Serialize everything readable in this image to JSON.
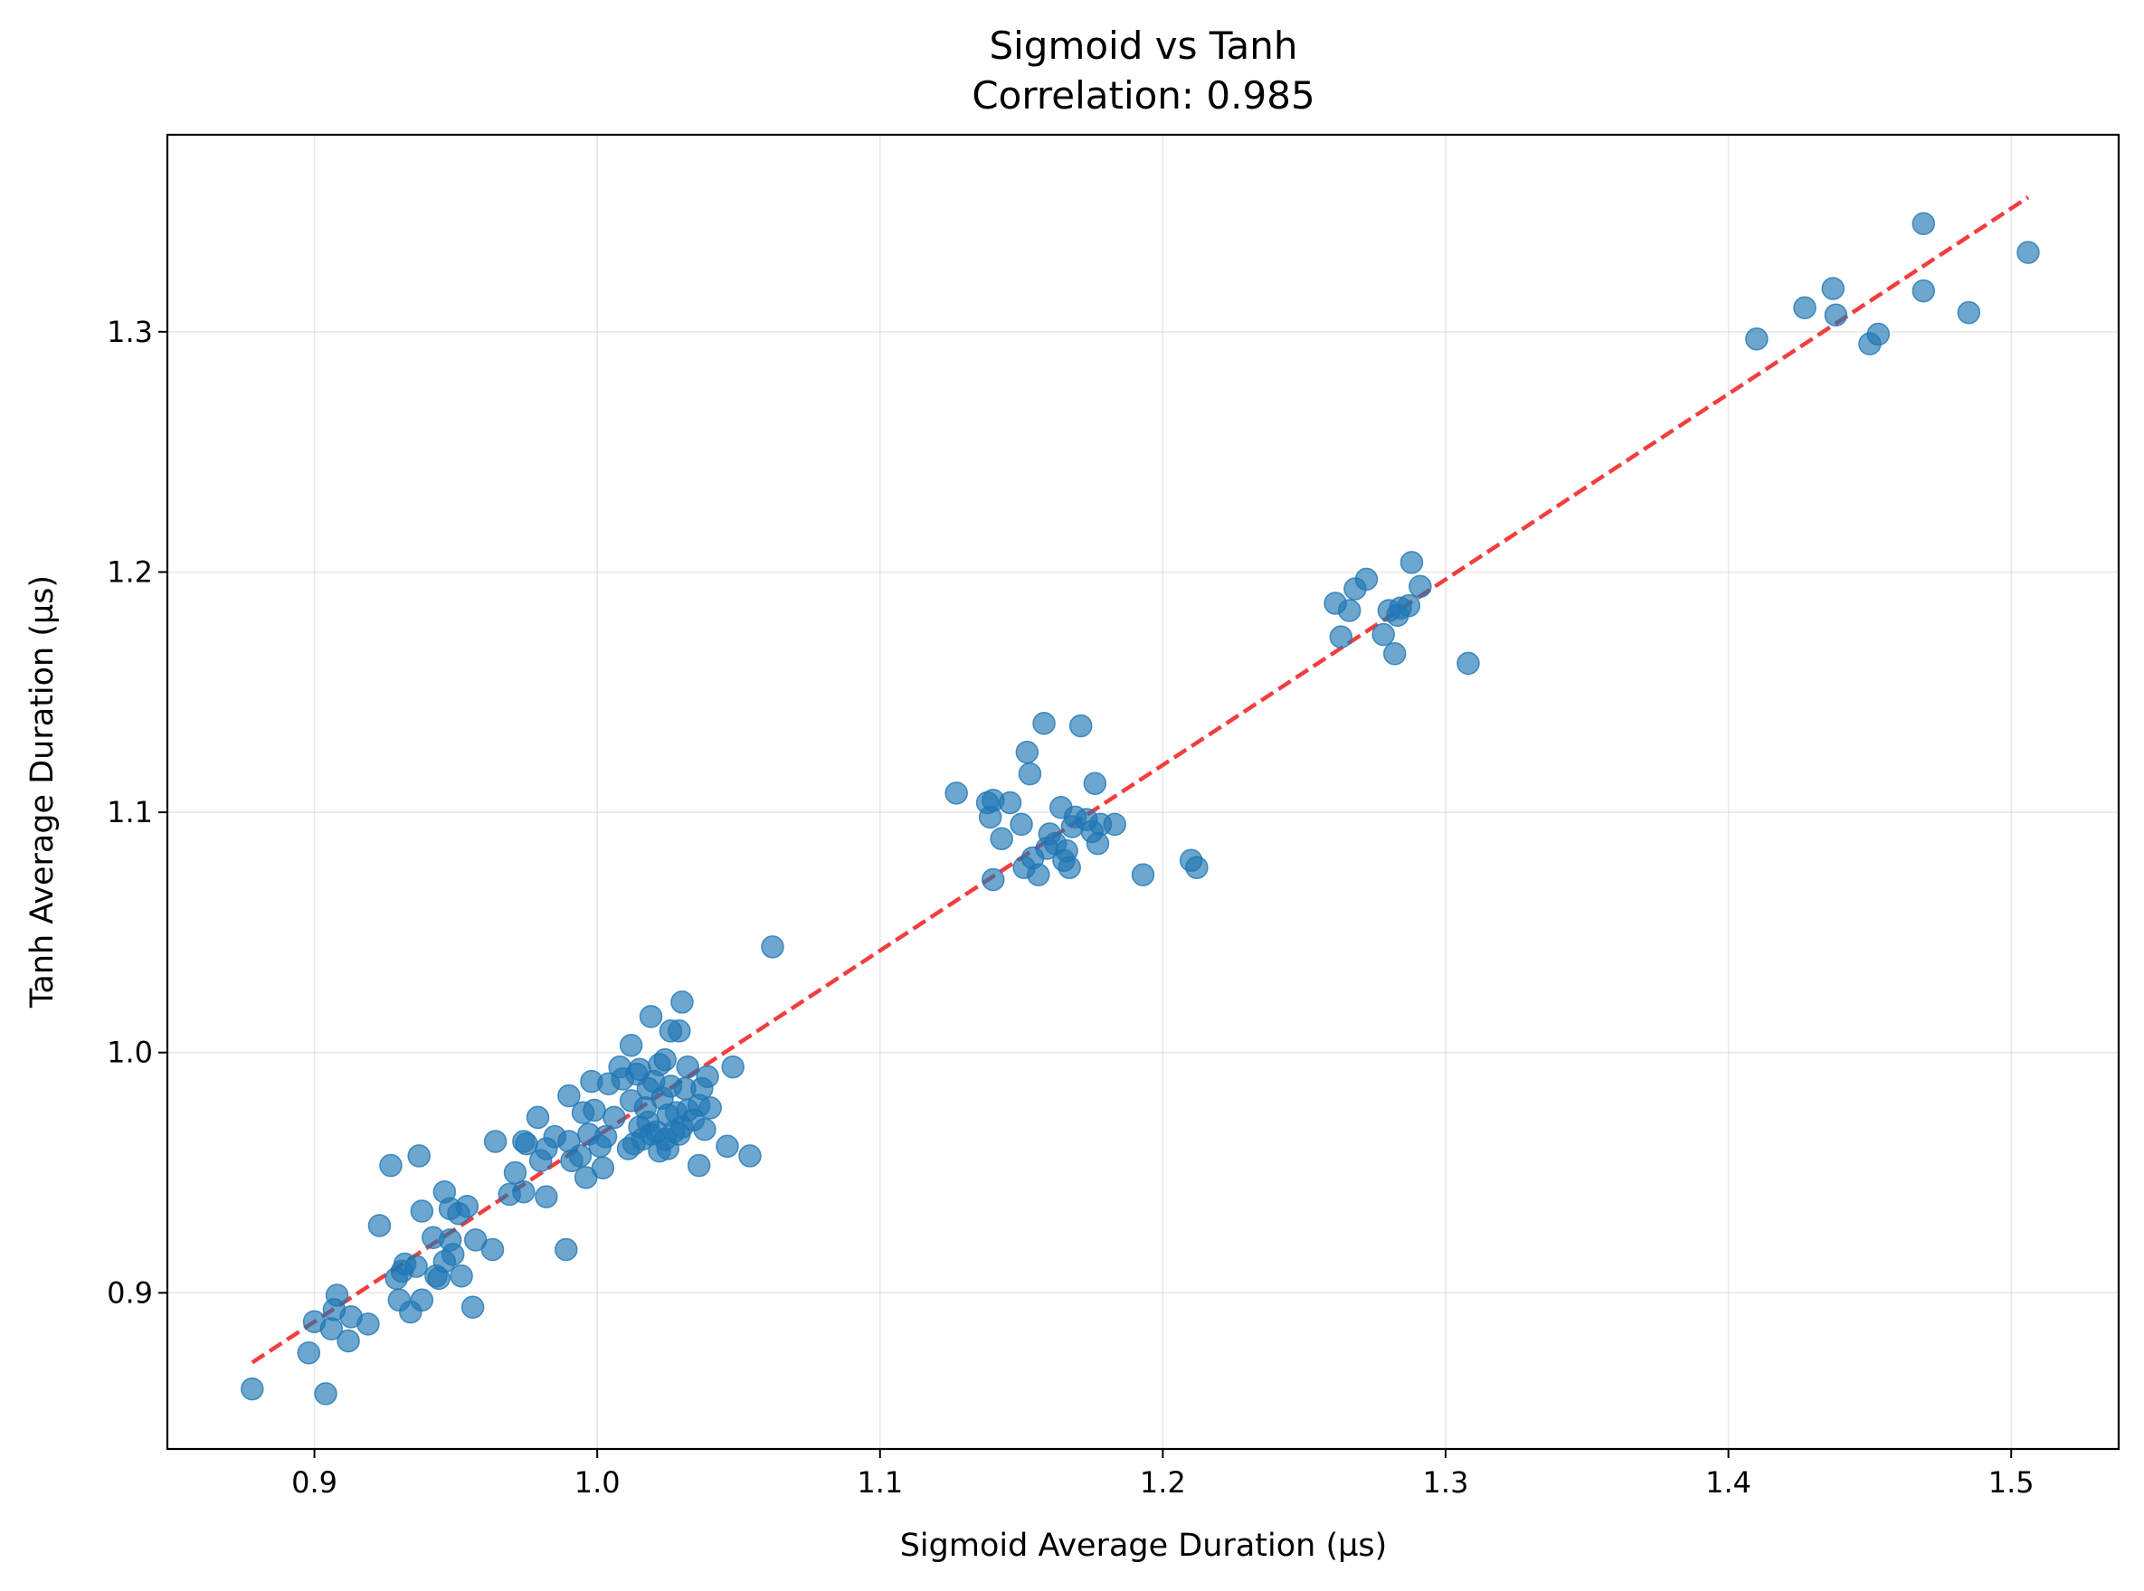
{
  "chart_data": {
    "type": "scatter",
    "title": "Sigmoid vs Tanh",
    "subtitle": "Correlation: 0.985",
    "xlabel": "Sigmoid Average Duration (µs)",
    "ylabel": "Tanh Average Duration (µs)",
    "xlim": [
      0.848,
      1.538
    ],
    "ylim": [
      0.835,
      1.382
    ],
    "xticks": [
      {
        "value": 0.9,
        "label": "0.9"
      },
      {
        "value": 1.0,
        "label": "1.0"
      },
      {
        "value": 1.1,
        "label": "1.1"
      },
      {
        "value": 1.2,
        "label": "1.2"
      },
      {
        "value": 1.3,
        "label": "1.3"
      },
      {
        "value": 1.4,
        "label": "1.4"
      },
      {
        "value": 1.5,
        "label": "1.5"
      }
    ],
    "yticks": [
      {
        "value": 0.9,
        "label": "0.9"
      },
      {
        "value": 1.0,
        "label": "1.0"
      },
      {
        "value": 1.1,
        "label": "1.1"
      },
      {
        "value": 1.2,
        "label": "1.2"
      },
      {
        "value": 1.3,
        "label": "1.3"
      }
    ],
    "grid": true,
    "colors": {
      "points": "#1f77b4",
      "trendline": "#ee1c1c"
    },
    "trendline": {
      "style": "dashed",
      "points": [
        [
          0.878,
          0.871
        ],
        [
          1.506,
          1.356
        ]
      ]
    },
    "points": [
      [
        0.878,
        0.86
      ],
      [
        0.898,
        0.875
      ],
      [
        0.9,
        0.888
      ],
      [
        0.904,
        0.858
      ],
      [
        0.906,
        0.885
      ],
      [
        0.907,
        0.893
      ],
      [
        0.908,
        0.899
      ],
      [
        0.912,
        0.88
      ],
      [
        0.913,
        0.89
      ],
      [
        0.919,
        0.887
      ],
      [
        0.923,
        0.928
      ],
      [
        0.927,
        0.953
      ],
      [
        0.929,
        0.906
      ],
      [
        0.93,
        0.897
      ],
      [
        0.931,
        0.909
      ],
      [
        0.932,
        0.912
      ],
      [
        0.934,
        0.892
      ],
      [
        0.936,
        0.911
      ],
      [
        0.937,
        0.957
      ],
      [
        0.938,
        0.897
      ],
      [
        0.938,
        0.934
      ],
      [
        0.942,
        0.923
      ],
      [
        0.943,
        0.907
      ],
      [
        0.944,
        0.906
      ],
      [
        0.946,
        0.942
      ],
      [
        0.946,
        0.913
      ],
      [
        0.948,
        0.935
      ],
      [
        0.948,
        0.922
      ],
      [
        0.949,
        0.916
      ],
      [
        0.951,
        0.933
      ],
      [
        0.952,
        0.907
      ],
      [
        0.954,
        0.936
      ],
      [
        0.956,
        0.894
      ],
      [
        0.957,
        0.922
      ],
      [
        0.963,
        0.918
      ],
      [
        0.964,
        0.963
      ],
      [
        0.969,
        0.941
      ],
      [
        0.971,
        0.95
      ],
      [
        0.974,
        0.942
      ],
      [
        0.974,
        0.963
      ],
      [
        0.975,
        0.962
      ],
      [
        0.979,
        0.973
      ],
      [
        0.98,
        0.955
      ],
      [
        0.982,
        0.94
      ],
      [
        0.982,
        0.96
      ],
      [
        0.985,
        0.965
      ],
      [
        0.989,
        0.918
      ],
      [
        0.99,
        0.982
      ],
      [
        0.99,
        0.963
      ],
      [
        0.991,
        0.955
      ],
      [
        0.994,
        0.957
      ],
      [
        0.995,
        0.975
      ],
      [
        0.996,
        0.948
      ],
      [
        0.997,
        0.966
      ],
      [
        0.998,
        0.988
      ],
      [
        0.999,
        0.976
      ],
      [
        1.001,
        0.961
      ],
      [
        1.002,
        0.952
      ],
      [
        1.003,
        0.965
      ],
      [
        1.004,
        0.987
      ],
      [
        1.006,
        0.973
      ],
      [
        1.008,
        0.994
      ],
      [
        1.009,
        0.989
      ],
      [
        1.011,
        0.96
      ],
      [
        1.012,
        1.003
      ],
      [
        1.012,
        0.98
      ],
      [
        1.013,
        0.962
      ],
      [
        1.014,
        0.991
      ],
      [
        1.015,
        0.969
      ],
      [
        1.015,
        0.993
      ],
      [
        1.016,
        0.964
      ],
      [
        1.017,
        0.977
      ],
      [
        1.018,
        0.985
      ],
      [
        1.018,
        0.971
      ],
      [
        1.019,
        1.015
      ],
      [
        1.019,
        0.966
      ],
      [
        1.02,
        0.988
      ],
      [
        1.021,
        0.967
      ],
      [
        1.022,
        0.995
      ],
      [
        1.022,
        0.959
      ],
      [
        1.023,
        0.981
      ],
      [
        1.024,
        0.964
      ],
      [
        1.024,
        0.997
      ],
      [
        1.025,
        0.974
      ],
      [
        1.025,
        0.96
      ],
      [
        1.026,
        0.986
      ],
      [
        1.026,
        1.009
      ],
      [
        1.027,
        0.967
      ],
      [
        1.028,
        0.975
      ],
      [
        1.029,
        0.966
      ],
      [
        1.029,
        1.009
      ],
      [
        1.03,
        1.021
      ],
      [
        1.03,
        0.969
      ],
      [
        1.031,
        0.985
      ],
      [
        1.032,
        0.976
      ],
      [
        1.032,
        0.994
      ],
      [
        1.034,
        0.972
      ],
      [
        1.036,
        0.978
      ],
      [
        1.036,
        0.953
      ],
      [
        1.037,
        0.985
      ],
      [
        1.038,
        0.968
      ],
      [
        1.039,
        0.99
      ],
      [
        1.04,
        0.977
      ],
      [
        1.046,
        0.961
      ],
      [
        1.048,
        0.994
      ],
      [
        1.054,
        0.957
      ],
      [
        1.062,
        1.044
      ],
      [
        1.127,
        1.108
      ],
      [
        1.138,
        1.104
      ],
      [
        1.139,
        1.098
      ],
      [
        1.14,
        1.105
      ],
      [
        1.14,
        1.072
      ],
      [
        1.143,
        1.089
      ],
      [
        1.146,
        1.104
      ],
      [
        1.15,
        1.095
      ],
      [
        1.151,
        1.077
      ],
      [
        1.152,
        1.125
      ],
      [
        1.153,
        1.116
      ],
      [
        1.154,
        1.081
      ],
      [
        1.156,
        1.074
      ],
      [
        1.158,
        1.137
      ],
      [
        1.159,
        1.085
      ],
      [
        1.16,
        1.091
      ],
      [
        1.162,
        1.087
      ],
      [
        1.164,
        1.102
      ],
      [
        1.165,
        1.08
      ],
      [
        1.166,
        1.084
      ],
      [
        1.167,
        1.077
      ],
      [
        1.168,
        1.094
      ],
      [
        1.169,
        1.098
      ],
      [
        1.171,
        1.136
      ],
      [
        1.173,
        1.097
      ],
      [
        1.175,
        1.092
      ],
      [
        1.176,
        1.112
      ],
      [
        1.177,
        1.087
      ],
      [
        1.178,
        1.095
      ],
      [
        1.183,
        1.095
      ],
      [
        1.193,
        1.074
      ],
      [
        1.21,
        1.08
      ],
      [
        1.212,
        1.077
      ],
      [
        1.261,
        1.187
      ],
      [
        1.263,
        1.173
      ],
      [
        1.266,
        1.184
      ],
      [
        1.268,
        1.193
      ],
      [
        1.272,
        1.197
      ],
      [
        1.278,
        1.174
      ],
      [
        1.28,
        1.184
      ],
      [
        1.282,
        1.166
      ],
      [
        1.283,
        1.182
      ],
      [
        1.284,
        1.185
      ],
      [
        1.287,
        1.186
      ],
      [
        1.288,
        1.204
      ],
      [
        1.291,
        1.194
      ],
      [
        1.308,
        1.162
      ],
      [
        1.41,
        1.297
      ],
      [
        1.427,
        1.31
      ],
      [
        1.437,
        1.318
      ],
      [
        1.438,
        1.307
      ],
      [
        1.45,
        1.295
      ],
      [
        1.453,
        1.299
      ],
      [
        1.469,
        1.345
      ],
      [
        1.469,
        1.317
      ],
      [
        1.485,
        1.308
      ],
      [
        1.506,
        1.333
      ]
    ]
  }
}
